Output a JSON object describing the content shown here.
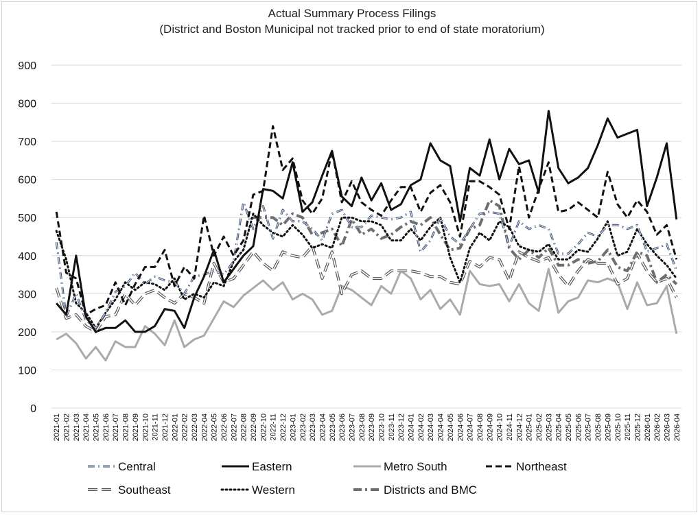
{
  "chart_data": {
    "type": "line",
    "title": "Actual Summary Process Filings",
    "subtitle": "(District and Boston Municipal not tracked prior to end of state moratorium)",
    "ylim": [
      0,
      900
    ],
    "yticks": [
      0,
      100,
      200,
      300,
      400,
      500,
      600,
      700,
      800,
      900
    ],
    "grid": "horizontal",
    "legend_position": "bottom",
    "x": [
      "2021-01",
      "2021-02",
      "2021-03",
      "2021-04",
      "2021-05",
      "2021-06",
      "2021-07",
      "2021-08",
      "2021-09",
      "2021-10",
      "2021-11",
      "2021-12",
      "2022-01",
      "2022-02",
      "2022-03",
      "2022-04",
      "2022-05",
      "2022-06",
      "2022-07",
      "2022-08",
      "2022-09",
      "2022-10",
      "2022-11",
      "2022-12",
      "2023-01",
      "2023-02",
      "2023-03",
      "2023-04",
      "2023-05",
      "2023-06",
      "2023-07",
      "2023-08",
      "2023-09",
      "2023-10",
      "2023-11",
      "2023-12",
      "2024-01",
      "2024-02",
      "2024-03",
      "2024-04",
      "2024-05",
      "2024-06",
      "2024-07",
      "2024-08",
      "2024-09",
      "2024-10",
      "2024-11",
      "2024-12",
      "2025-01",
      "2025-02",
      "2025-03",
      "2025-04",
      "2025-05",
      "2025-06",
      "2025-07",
      "2025-08",
      "2025-09",
      "2025-10",
      "2025-11",
      "2025-12",
      "2026-01",
      "2026-02",
      "2026-03",
      "2026-04"
    ],
    "x_tick_labels": [
      "2021-01",
      "2021-02",
      "2021-03",
      "2021-04",
      "2021-05",
      "2021-06",
      "2021-07",
      "2021-08",
      "2021-09",
      "2021-10",
      "2021-11",
      "2021-12",
      "2022-01",
      "2022-02",
      "2022-03",
      "2022-04",
      "2022-05",
      "2022-06",
      "2022-07",
      "2022-08",
      "2022-09",
      "2022-10",
      "2022-11",
      "2022-12",
      "2023-01",
      "2023-02",
      "2023-03",
      "2023-04",
      "2023-05",
      "2023-06",
      "2023-07",
      "2023-08",
      "2023-09",
      "2023-10",
      "2023-11",
      "2023-12",
      "2024-01",
      "2024-02",
      "2024-03",
      "2024-04",
      "2024-05",
      "2024-06",
      "2024-07",
      "2024-08",
      "2024-09",
      "2024-10",
      "2024-11",
      "2024-12",
      "2025-01",
      "2025-02",
      "2025-03",
      "2025-04",
      "2025-05",
      "2025-06",
      "2025-07",
      "2025-08",
      "2025-09",
      "2025-10",
      "2025-11",
      "2025-12",
      "2026-01",
      "2026-02",
      "2026-03",
      "2026-04"
    ],
    "series": [
      {
        "name": "Central",
        "style": "central",
        "color": "#3a4a66",
        "values": [
          435,
          240,
          300,
          230,
          210,
          250,
          305,
          320,
          355,
          325,
          345,
          335,
          330,
          300,
          345,
          350,
          360,
          350,
          385,
          540,
          470,
          530,
          445,
          520,
          490,
          490,
          470,
          440,
          510,
          520,
          475,
          475,
          505,
          500,
          495,
          500,
          515,
          410,
          440,
          500,
          450,
          430,
          470,
          510,
          515,
          510,
          425,
          490,
          470,
          480,
          470,
          405,
          405,
          430,
          460,
          450,
          480,
          480,
          470,
          480,
          410,
          420,
          430,
          360
        ]
      },
      {
        "name": "Eastern",
        "style": "solid",
        "color": "#111111",
        "values": [
          275,
          245,
          400,
          240,
          200,
          210,
          210,
          230,
          200,
          200,
          215,
          260,
          255,
          210,
          290,
          345,
          415,
          330,
          365,
          400,
          425,
          575,
          570,
          550,
          645,
          515,
          540,
          610,
          675,
          555,
          530,
          605,
          545,
          590,
          520,
          535,
          585,
          600,
          695,
          650,
          635,
          490,
          630,
          610,
          705,
          600,
          680,
          640,
          650,
          565,
          780,
          630,
          590,
          605,
          630,
          690,
          760,
          710,
          720,
          730,
          530,
          605,
          695,
          495
        ]
      },
      {
        "name": "Metro South",
        "style": "solid",
        "color": "#aaaaaa",
        "values": [
          180,
          195,
          170,
          130,
          160,
          125,
          175,
          160,
          160,
          215,
          195,
          165,
          230,
          160,
          180,
          190,
          235,
          280,
          265,
          295,
          315,
          335,
          310,
          330,
          285,
          300,
          285,
          245,
          255,
          320,
          310,
          290,
          270,
          320,
          300,
          360,
          340,
          285,
          310,
          260,
          285,
          245,
          360,
          325,
          320,
          325,
          280,
          325,
          275,
          255,
          365,
          250,
          280,
          290,
          335,
          330,
          340,
          330,
          260,
          330,
          270,
          275,
          320,
          195
        ]
      },
      {
        "name": "Northeast",
        "style": "dashed",
        "color": "#111111",
        "values": [
          515,
          355,
          340,
          245,
          260,
          270,
          330,
          270,
          325,
          370,
          370,
          415,
          320,
          370,
          340,
          505,
          400,
          450,
          400,
          440,
          560,
          570,
          740,
          625,
          655,
          545,
          510,
          550,
          675,
          540,
          595,
          540,
          520,
          505,
          545,
          580,
          580,
          515,
          565,
          585,
          540,
          450,
          595,
          595,
          580,
          560,
          470,
          635,
          500,
          575,
          645,
          515,
          520,
          540,
          520,
          500,
          620,
          535,
          500,
          545,
          515,
          455,
          480,
          390
        ]
      },
      {
        "name": "Southeast",
        "style": "southeast",
        "color": "#555555",
        "values": [
          315,
          235,
          245,
          215,
          200,
          240,
          245,
          300,
          270,
          300,
          310,
          290,
          275,
          300,
          290,
          275,
          380,
          330,
          340,
          375,
          410,
          380,
          360,
          410,
          400,
          395,
          425,
          340,
          410,
          300,
          350,
          360,
          340,
          340,
          360,
          360,
          360,
          355,
          345,
          345,
          330,
          325,
          385,
          370,
          395,
          390,
          335,
          410,
          395,
          385,
          395,
          350,
          320,
          360,
          390,
          380,
          380,
          325,
          340,
          405,
          360,
          330,
          340,
          290
        ]
      },
      {
        "name": "Western",
        "style": "dotted",
        "color": "#111111",
        "values": [
          465,
          390,
          275,
          250,
          210,
          250,
          285,
          330,
          310,
          330,
          325,
          310,
          340,
          285,
          300,
          290,
          330,
          320,
          385,
          415,
          510,
          480,
          460,
          450,
          480,
          455,
          420,
          430,
          420,
          500,
          500,
          490,
          490,
          480,
          440,
          440,
          470,
          440,
          475,
          500,
          395,
          330,
          420,
          460,
          440,
          490,
          475,
          425,
          415,
          410,
          430,
          390,
          390,
          415,
          410,
          445,
          490,
          400,
          410,
          470,
          430,
          400,
          375,
          340
        ]
      },
      {
        "name": "Districts and BMC",
        "style": "dashdot",
        "color": "#6e6e6e",
        "values": [
          null,
          null,
          null,
          null,
          null,
          null,
          null,
          null,
          null,
          null,
          null,
          null,
          null,
          null,
          null,
          null,
          null,
          null,
          null,
          null,
          500,
          500,
          500,
          480,
          510,
          500,
          455,
          460,
          470,
          425,
          495,
          455,
          470,
          445,
          455,
          475,
          490,
          480,
          500,
          455,
          415,
          420,
          470,
          480,
          545,
          530,
          420,
          390,
          415,
          395,
          420,
          375,
          375,
          390,
          380,
          385,
          415,
          370,
          360,
          410,
          400,
          330,
          350,
          325
        ]
      }
    ]
  }
}
